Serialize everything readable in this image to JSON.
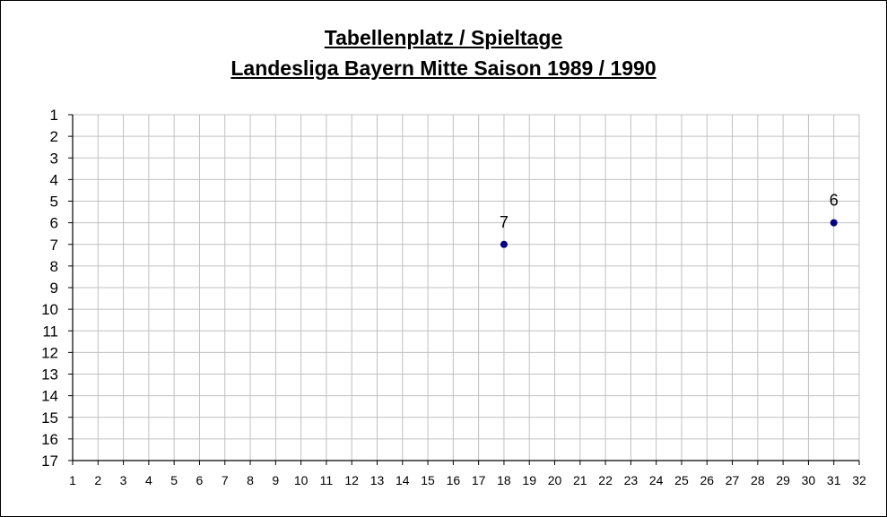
{
  "chart_data": {
    "type": "scatter",
    "title": "Tabellenplatz / Spieltage",
    "subtitle": "Landesliga Bayern Mitte Saison 1989 / 1990",
    "xlabel": "",
    "ylabel": "",
    "xlim": [
      1,
      32
    ],
    "ylim": [
      1,
      17
    ],
    "y_inverted": true,
    "x_ticks": [
      1,
      2,
      3,
      4,
      5,
      6,
      7,
      8,
      9,
      10,
      11,
      12,
      13,
      14,
      15,
      16,
      17,
      18,
      19,
      20,
      21,
      22,
      23,
      24,
      25,
      26,
      27,
      28,
      29,
      30,
      31,
      32
    ],
    "y_ticks": [
      1,
      2,
      3,
      4,
      5,
      6,
      7,
      8,
      9,
      10,
      11,
      12,
      13,
      14,
      15,
      16,
      17
    ],
    "grid": true,
    "legend": "none",
    "marker_color": "#000080",
    "grid_color": "#c0c0c0",
    "series": [
      {
        "points": [
          {
            "x": 18,
            "y": 7,
            "label": "7"
          },
          {
            "x": 31,
            "y": 6,
            "label": "6"
          }
        ]
      }
    ]
  }
}
